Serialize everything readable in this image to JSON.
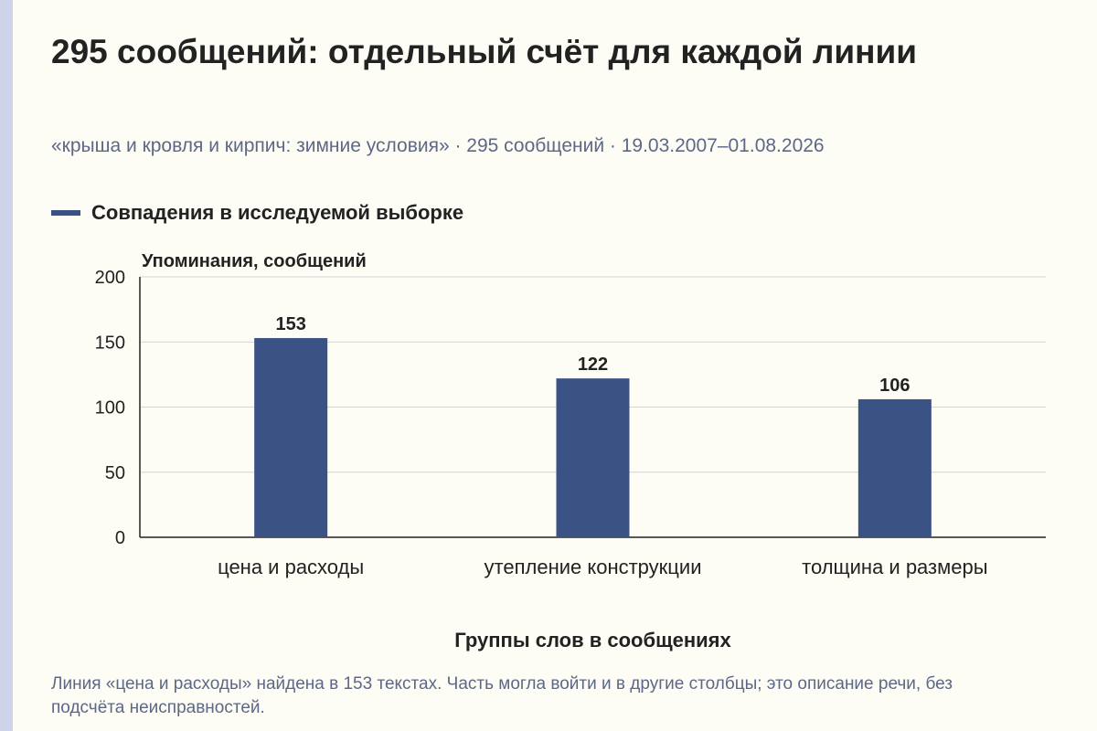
{
  "page": {
    "title": "295 сообщений: отдельный счёт для каждой линии",
    "subtitle": "«крыша и кровля и кирпич: зимние условия» · 295 сообщений · 19.03.2007–01.08.2026",
    "caption": "Линия «цена и расходы» найдена в 153 текстах. Часть могла войти и в другие столбцы; это описание речи, без подсчёта неисправностей."
  },
  "colors": {
    "bar": "#3b5285",
    "grid": "#d4d4d4",
    "axis": "#222222"
  },
  "chart_data": {
    "type": "bar",
    "categories": [
      "цена и расходы",
      "утепление конструкции",
      "толщина и размеры"
    ],
    "series": [
      {
        "name": "Совпадения в исследуемой выборке",
        "values": [
          153,
          122,
          106
        ]
      }
    ],
    "ylabel": "Упоминания, сообщений",
    "xlabel": "Группы слов в сообщениях",
    "ylim": [
      0,
      200
    ],
    "yticks": [
      0,
      50,
      100,
      150,
      200
    ],
    "grid": true,
    "legend": "top-left",
    "data_labels": true
  }
}
